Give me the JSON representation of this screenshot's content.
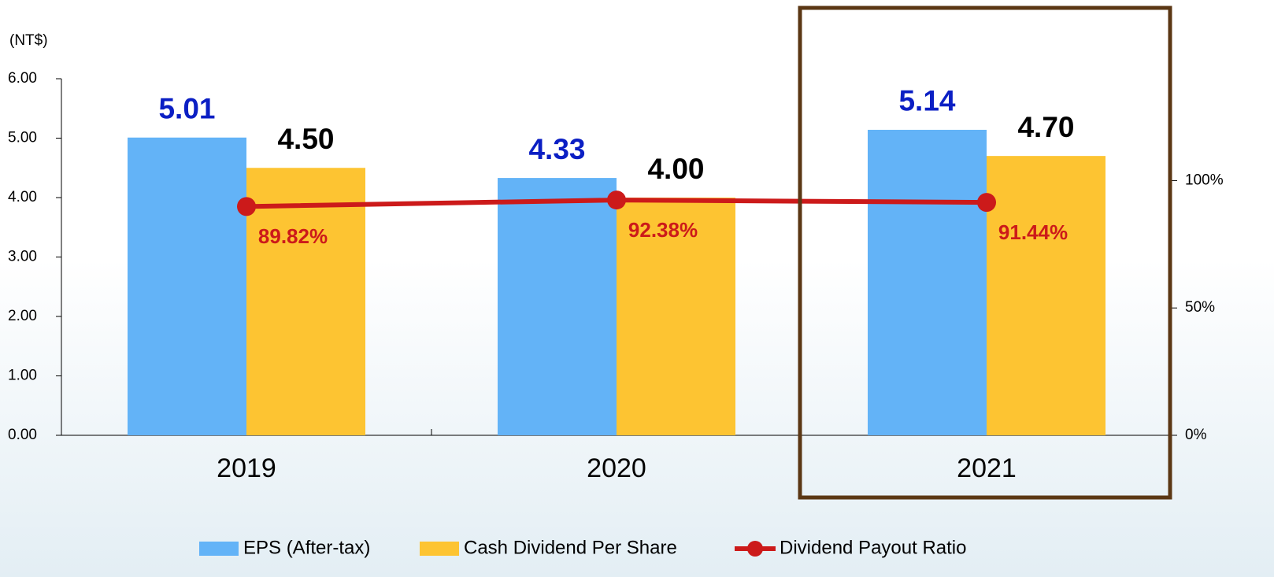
{
  "chart_data": {
    "type": "bar",
    "y_label": "(NT$)",
    "categories": [
      "2019",
      "2020",
      "2021"
    ],
    "series": [
      {
        "name": "EPS (After-tax)",
        "color": "#63b3f7",
        "label_color": "#0b1fc4",
        "values": [
          5.01,
          4.33,
          5.14
        ],
        "value_labels": [
          "5.01",
          "4.33",
          "5.14"
        ]
      },
      {
        "name": "Cash Dividend Per Share",
        "color": "#fdc432",
        "label_color": "#000000",
        "values": [
          4.5,
          4.0,
          4.7
        ],
        "value_labels": [
          "4.50",
          "4.00",
          "4.70"
        ]
      },
      {
        "name": "Dividend Payout Ratio",
        "type": "line",
        "axis": "y2",
        "color": "#cc1a1a",
        "values": [
          89.82,
          92.38,
          91.44
        ],
        "value_labels": [
          "89.82%",
          "92.38%",
          "91.44%"
        ]
      }
    ],
    "ylim": [
      0,
      6
    ],
    "yticks": [
      {
        "value": 0,
        "label": "0.00"
      },
      {
        "value": 1,
        "label": "1.00"
      },
      {
        "value": 2,
        "label": "2.00"
      },
      {
        "value": 3,
        "label": "3.00"
      },
      {
        "value": 4,
        "label": "4.00"
      },
      {
        "value": 5,
        "label": "5.00"
      },
      {
        "value": 6,
        "label": "6.00"
      }
    ],
    "y2lim": [
      0,
      140
    ],
    "y2ticks": [
      {
        "value": 0,
        "label": "0%"
      },
      {
        "value": 50,
        "label": "50%"
      },
      {
        "value": 100,
        "label": "100%"
      }
    ],
    "grid": false,
    "legend": "bottom"
  }
}
